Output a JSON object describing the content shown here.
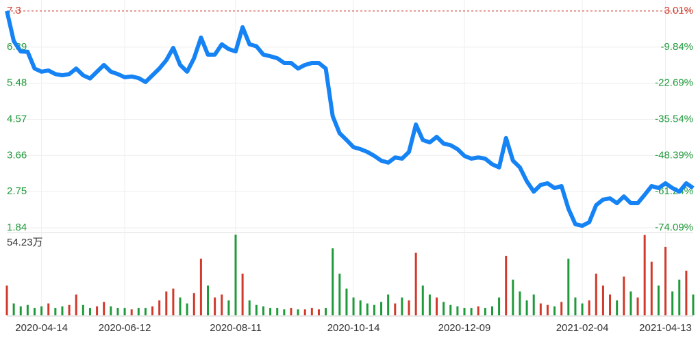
{
  "chart_data": [
    {
      "type": "line",
      "color": "#1683f5",
      "grid": true,
      "up_color": "#d1392b",
      "down_color": "#1f9a3a",
      "ylim": [
        1.84,
        7.3
      ],
      "yticks": [
        7.3,
        6.39,
        5.48,
        4.57,
        3.66,
        2.75,
        1.84
      ],
      "y2lim": [
        -74.09,
        3.01
      ],
      "y2ticks": [
        {
          "value": 3.01,
          "label": "3.01%"
        },
        {
          "value": -9.84,
          "label": "-9.84%"
        },
        {
          "value": -22.69,
          "label": "-22.69%"
        },
        {
          "value": -35.54,
          "label": "-35.54%"
        },
        {
          "value": -48.39,
          "label": "-48.39%"
        },
        {
          "value": -61.24,
          "label": "-61.24%"
        },
        {
          "value": -74.09,
          "label": "-74.09%"
        }
      ],
      "values": [
        7.3,
        6.54,
        6.28,
        6.27,
        5.85,
        5.77,
        5.8,
        5.71,
        5.68,
        5.71,
        5.85,
        5.68,
        5.6,
        5.77,
        5.94,
        5.77,
        5.71,
        5.63,
        5.65,
        5.61,
        5.51,
        5.68,
        5.85,
        6.06,
        6.37,
        5.94,
        5.77,
        6.11,
        6.63,
        6.2,
        6.2,
        6.46,
        6.34,
        6.28,
        6.89,
        6.46,
        6.41,
        6.2,
        6.16,
        6.11,
        5.99,
        5.99,
        5.85,
        5.94,
        5.99,
        5.99,
        5.85,
        4.65,
        4.22,
        4.05,
        3.87,
        3.82,
        3.75,
        3.65,
        3.53,
        3.48,
        3.61,
        3.58,
        3.75,
        4.44,
        4.05,
        3.99,
        4.13,
        3.96,
        3.92,
        3.82,
        3.65,
        3.58,
        3.61,
        3.58,
        3.44,
        3.36,
        4.1,
        3.53,
        3.36,
        3.01,
        2.75,
        2.92,
        2.96,
        2.84,
        2.89,
        2.32,
        1.93,
        1.89,
        1.98,
        2.41,
        2.55,
        2.58,
        2.46,
        2.63,
        2.46,
        2.46,
        2.67,
        2.89,
        2.84,
        2.96,
        2.84,
        2.75,
        2.96,
        2.84
      ]
    },
    {
      "type": "bar",
      "up_color": "#d1392b",
      "down_color": "#1f9a3a",
      "ylim": [
        0,
        54.23
      ],
      "yticks": [
        {
          "value": 54.23,
          "label": "54.23万"
        }
      ],
      "categories": [
        null,
        null,
        null,
        null,
        null,
        "2020-04-14",
        null,
        null,
        null,
        null,
        null,
        null,
        null,
        null,
        null,
        null,
        null,
        "2020-06-12",
        null,
        null,
        null,
        null,
        null,
        null,
        null,
        null,
        null,
        null,
        null,
        null,
        null,
        null,
        null,
        "2020-08-11",
        null,
        null,
        null,
        null,
        null,
        null,
        null,
        null,
        null,
        null,
        null,
        null,
        null,
        null,
        null,
        null,
        "2020-10-14",
        null,
        null,
        null,
        null,
        null,
        null,
        null,
        null,
        null,
        null,
        null,
        null,
        null,
        null,
        null,
        "2020-12-09",
        null,
        null,
        null,
        null,
        null,
        null,
        null,
        null,
        null,
        null,
        null,
        null,
        null,
        null,
        null,
        null,
        "2021-02-04",
        null,
        null,
        null,
        null,
        null,
        null,
        null,
        null,
        null,
        null,
        null,
        "2021-04-13",
        null,
        null,
        null,
        null
      ],
      "values": [
        20,
        8,
        6,
        7,
        5,
        6,
        8,
        5,
        6,
        7,
        14,
        7,
        5,
        6,
        9,
        6,
        5,
        5,
        4,
        5,
        5,
        6,
        10,
        16,
        18,
        12,
        8,
        15,
        38,
        20,
        12,
        14,
        10,
        54.23,
        28,
        10,
        7,
        6,
        5,
        5,
        4,
        5,
        4,
        4,
        5,
        4,
        5,
        45,
        28,
        18,
        12,
        10,
        8,
        7,
        9,
        14,
        8,
        12,
        10,
        42,
        20,
        14,
        12,
        9,
        7,
        6,
        5,
        5,
        6,
        5,
        6,
        12,
        40,
        24,
        16,
        10,
        14,
        8,
        7,
        6,
        9,
        38,
        12,
        8,
        10,
        28,
        20,
        14,
        10,
        26,
        16,
        12,
        54,
        36,
        20,
        46,
        16,
        24,
        30,
        14
      ]
    }
  ]
}
